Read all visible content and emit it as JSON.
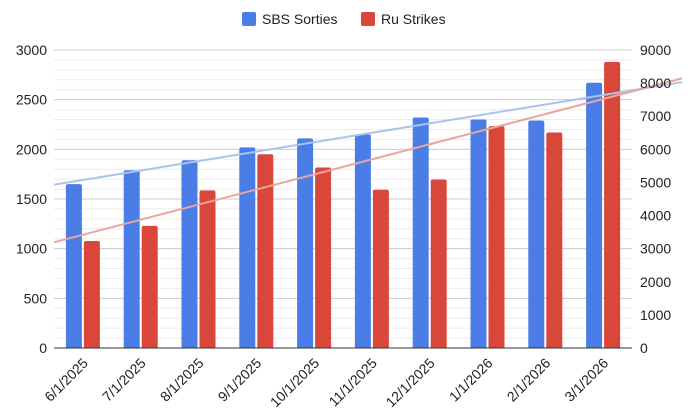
{
  "chart_data": {
    "type": "bar",
    "categories": [
      "6/1/2025",
      "7/1/2025",
      "8/1/2025",
      "9/1/2025",
      "10/1/2025",
      "11/1/2025",
      "12/1/2025",
      "1/1/2026",
      "2/1/2026",
      "3/1/2026"
    ],
    "series": [
      {
        "name": "SBS Sorties",
        "axis": "left",
        "color": "#4a7ee6",
        "values": [
          1650,
          1790,
          1890,
          2020,
          2110,
          2150,
          2320,
          2300,
          2290,
          2670
        ]
      },
      {
        "name": "Ru Strikes",
        "axis": "right",
        "color": "#d9473a",
        "values": [
          3230,
          3690,
          4760,
          5850,
          5450,
          4780,
          5090,
          6700,
          6510,
          8640
        ]
      }
    ],
    "trendlines": [
      {
        "series": "SBS Sorties",
        "type": "linear",
        "color": "#a9c3ec"
      },
      {
        "series": "Ru Strikes",
        "type": "linear",
        "color": "#eba59e"
      }
    ],
    "y_left": {
      "min": 0,
      "max": 3000,
      "ticks": [
        0,
        500,
        1000,
        1500,
        2000,
        2500,
        3000
      ]
    },
    "y_right": {
      "min": 0,
      "max": 9000,
      "ticks": [
        0,
        1000,
        2000,
        3000,
        4000,
        5000,
        6000,
        7000,
        8000,
        9000
      ]
    },
    "grid": true,
    "legend": "top-center",
    "title": "",
    "xlabel": "",
    "ylabel": ""
  }
}
